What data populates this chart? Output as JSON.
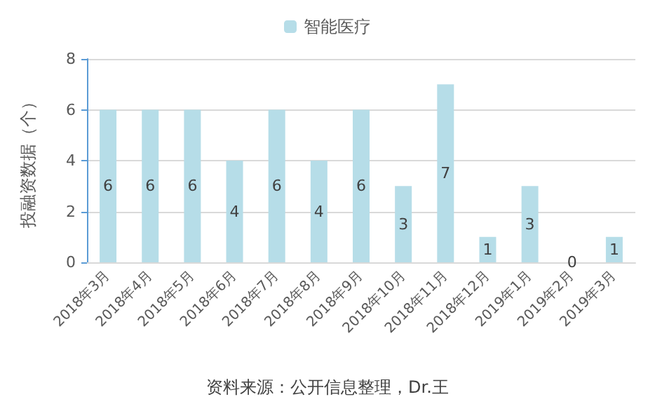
{
  "chart_data": {
    "type": "bar",
    "ylabel": "投融资数据（个）",
    "categories": [
      "2018年3月",
      "2018年4月",
      "2018年5月",
      "2018年6月",
      "2018年7月",
      "2018年8月",
      "2018年9月",
      "2018年10月",
      "2018年11月",
      "2018年12月",
      "2019年1月",
      "2019年2月",
      "2019年3月"
    ],
    "series": [
      {
        "name": "智能医疗",
        "color": "#b6dde8",
        "values": [
          6,
          6,
          6,
          4,
          6,
          4,
          6,
          3,
          7,
          1,
          3,
          0,
          1
        ]
      }
    ],
    "ylim": [
      0,
      8
    ],
    "yticks": [
      0,
      2,
      4,
      6,
      8
    ],
    "grid": "y",
    "legend": "top",
    "data_labels": true,
    "annotations": [
      "资料来源：公开信息整理，Dr.王"
    ]
  }
}
